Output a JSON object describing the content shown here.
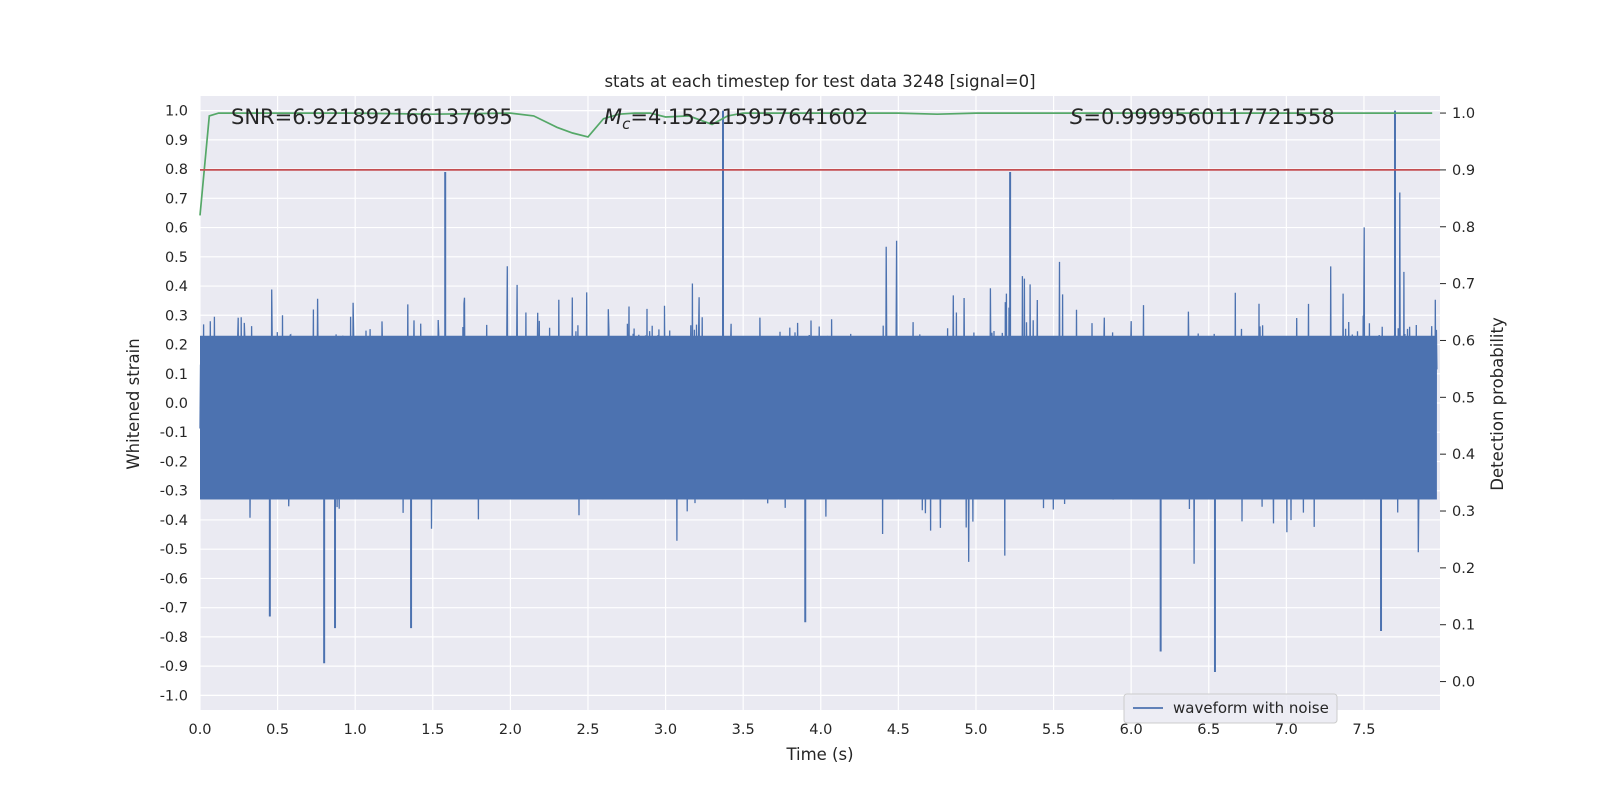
{
  "chart_data": {
    "type": "line",
    "title": "stats at each timestep for test data 3248 [signal=0]",
    "xlabel": "Time (s)",
    "ylabel": "Whitened strain",
    "ylabel_right": "Detection probability",
    "xlim": [
      0.0,
      7.99
    ],
    "ylim": [
      -1.05,
      1.05
    ],
    "ylim_right": [
      -0.05,
      1.03
    ],
    "x_ticks": [
      "0.0",
      "0.5",
      "1.0",
      "1.5",
      "2.0",
      "2.5",
      "3.0",
      "3.5",
      "4.0",
      "4.5",
      "5.0",
      "5.5",
      "6.0",
      "6.5",
      "7.0",
      "7.5"
    ],
    "y_ticks": [
      "1.0",
      "0.9",
      "0.8",
      "0.7",
      "0.6",
      "0.5",
      "0.4",
      "0.3",
      "0.2",
      "0.1",
      "0.0",
      "-0.1",
      "-0.2",
      "-0.3",
      "-0.4",
      "-0.5",
      "-0.6",
      "-0.7",
      "-0.8",
      "-0.9",
      "-1.0"
    ],
    "y_ticks_right": [
      "1.0",
      "0.9",
      "0.8",
      "0.7",
      "0.6",
      "0.5",
      "0.4",
      "0.3",
      "0.2",
      "0.1",
      "0.0"
    ],
    "annotations": {
      "snr": "SNR=6.921892166137695",
      "mc_symbol": "M",
      "mc_sub": "c",
      "mc_value": "=4.152215957641602",
      "s_symbol": "S",
      "s_value": "=0.9999560117721558"
    },
    "legend": {
      "entries": [
        "waveform with noise"
      ],
      "placement": "lower-right"
    },
    "grid": true,
    "series": [
      {
        "name": "waveform with noise",
        "axis": "left",
        "color": "#4c72b0",
        "style": "dense noise, |strain| mostly below 0.5, max 1.0",
        "spikes": [
          {
            "x": 0.8,
            "y": -0.89
          },
          {
            "x": 1.58,
            "y": 0.79
          },
          {
            "x": 3.37,
            "y": 1.0
          },
          {
            "x": 6.54,
            "y": -0.92
          },
          {
            "x": 7.7,
            "y": 1.0
          },
          {
            "x": 0.45,
            "y": -0.73
          },
          {
            "x": 1.36,
            "y": -0.77
          },
          {
            "x": 3.9,
            "y": -0.75
          },
          {
            "x": 5.22,
            "y": 0.79
          },
          {
            "x": 6.19,
            "y": -0.85
          },
          {
            "x": 7.61,
            "y": -0.78
          },
          {
            "x": 0.87,
            "y": -0.77
          }
        ]
      },
      {
        "axis": "right",
        "color": "#55a868",
        "x": [
          0.0,
          0.06,
          0.12,
          0.3,
          0.6,
          1.0,
          1.5,
          2.0,
          2.15,
          2.3,
          2.4,
          2.5,
          2.6,
          2.7,
          2.8,
          2.9,
          3.0,
          3.15,
          3.3,
          3.4,
          3.5,
          3.7,
          4.0,
          4.5,
          4.75,
          5.0,
          5.5,
          6.0,
          6.5,
          7.0,
          7.5,
          7.94
        ],
        "values": [
          0.82,
          0.995,
          1.0,
          1.0,
          1.0,
          1.0,
          0.998,
          1.0,
          0.995,
          0.975,
          0.965,
          0.958,
          0.99,
          0.998,
          1.0,
          1.0,
          0.993,
          0.995,
          0.98,
          0.995,
          1.0,
          1.0,
          1.0,
          1.0,
          0.998,
          1.0,
          1.0,
          1.0,
          1.0,
          1.0,
          1.0,
          1.0
        ]
      },
      {
        "axis": "right",
        "color": "#c44e52",
        "x": [
          0.0,
          7.99
        ],
        "values": [
          0.9,
          0.9
        ]
      }
    ]
  }
}
